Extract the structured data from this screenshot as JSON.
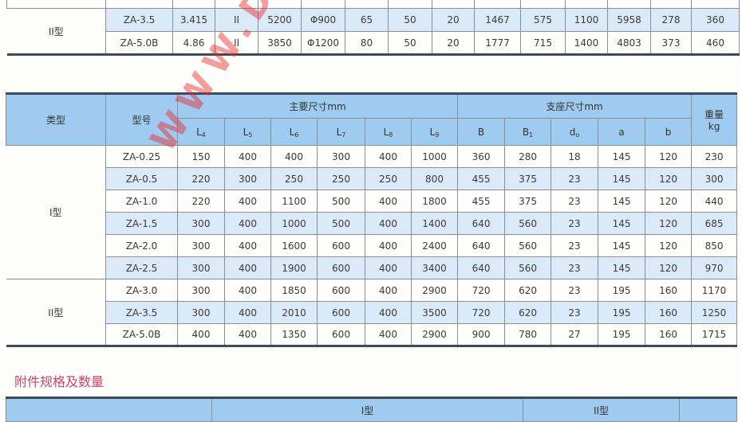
{
  "top_table": {
    "type_label": "II型",
    "rows": [
      [
        "ZA-3.5",
        "3.415",
        "II",
        "5200",
        "Φ900",
        "65",
        "50",
        "20",
        "1467",
        "575",
        "1100",
        "5958",
        "278",
        "360"
      ],
      [
        "ZA-5.0B",
        "4.86",
        "II",
        "3850",
        "Φ1200",
        "80",
        "50",
        "20",
        "1777",
        "715",
        "1400",
        "4803",
        "373",
        "460"
      ]
    ]
  },
  "dims_table": {
    "headers": {
      "type": "类型",
      "model": "型号",
      "main_dims": "主要尺寸mm",
      "support_dims": "支座尺寸mm",
      "weight": "重量",
      "weight_unit": "kg",
      "main_cols": [
        [
          "L",
          "4"
        ],
        [
          "L",
          "5"
        ],
        [
          "L",
          "6"
        ],
        [
          "L",
          "7"
        ],
        [
          "L",
          "8"
        ],
        [
          "L",
          "9"
        ]
      ],
      "support_cols": [
        [
          "B",
          ""
        ],
        [
          "B",
          "1"
        ],
        [
          "d",
          "o"
        ],
        [
          "a",
          ""
        ],
        [
          "b",
          ""
        ]
      ]
    },
    "groups": [
      {
        "type": "I型",
        "rows": [
          [
            "ZA-0.25",
            "150",
            "400",
            "400",
            "300",
            "400",
            "1000",
            "360",
            "280",
            "18",
            "145",
            "120",
            "230"
          ],
          [
            "ZA-0.5",
            "220",
            "300",
            "250",
            "250",
            "250",
            "800",
            "455",
            "375",
            "23",
            "145",
            "120",
            "300"
          ],
          [
            "ZA-1.0",
            "220",
            "400",
            "1100",
            "500",
            "400",
            "1800",
            "455",
            "375",
            "23",
            "145",
            "120",
            "440"
          ],
          [
            "ZA-1.5",
            "300",
            "400",
            "1000",
            "500",
            "400",
            "1400",
            "640",
            "560",
            "23",
            "145",
            "120",
            "685"
          ],
          [
            "ZA-2.0",
            "300",
            "400",
            "1600",
            "600",
            "400",
            "2400",
            "640",
            "560",
            "23",
            "145",
            "120",
            "850"
          ],
          [
            "ZA-2.5",
            "300",
            "400",
            "1900",
            "600",
            "400",
            "3400",
            "640",
            "560",
            "23",
            "145",
            "120",
            "970"
          ]
        ]
      },
      {
        "type": "II型",
        "rows": [
          [
            "ZA-3.0",
            "300",
            "400",
            "1850",
            "600",
            "400",
            "2900",
            "720",
            "620",
            "23",
            "195",
            "160",
            "1170"
          ],
          [
            "ZA-3.5",
            "300",
            "400",
            "2010",
            "600",
            "400",
            "3500",
            "720",
            "620",
            "23",
            "195",
            "160",
            "1250"
          ],
          [
            "ZA-5.0B",
            "400",
            "400",
            "1350",
            "600",
            "400",
            "2900",
            "900",
            "780",
            "27",
            "195",
            "160",
            "1715"
          ]
        ]
      }
    ]
  },
  "accessories": {
    "title": "附件规格及数量",
    "col_I": "I型",
    "col_II": "II型"
  },
  "watermark": "WWW.DALENG",
  "colors": {
    "header_blue": "#9ecbef",
    "stripe_blue": "#dbeaf8",
    "title_red": "#c9456a",
    "watermark_red": "#eb2828"
  }
}
